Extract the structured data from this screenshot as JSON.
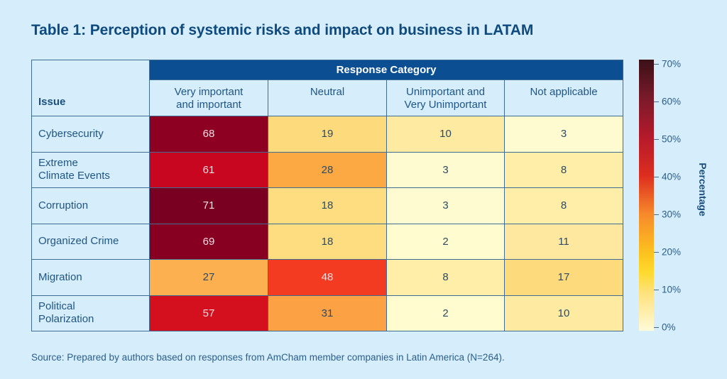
{
  "title": "Table 1: Perception of systemic risks and impact on business in LATAM",
  "source": "Source: Prepared by authors based on responses from AmCham member companies in Latin America (N=264).",
  "chart_data": {
    "type": "heatmap",
    "title": "Table 1: Perception of systemic risks and impact on business in LATAM",
    "row_header": "Issue",
    "column_group_header": "Response Category",
    "columns": [
      [
        "Very important",
        "and important"
      ],
      [
        "Neutral"
      ],
      [
        "Unimportant and",
        "Very Unimportant"
      ],
      [
        "Not applicable"
      ]
    ],
    "rows": [
      {
        "label": [
          "Cybersecurity"
        ],
        "values": [
          68,
          19,
          10,
          3
        ]
      },
      {
        "label": [
          "Extreme",
          "Climate Events"
        ],
        "values": [
          61,
          28,
          3,
          8
        ]
      },
      {
        "label": [
          "Corruption"
        ],
        "values": [
          71,
          18,
          3,
          8
        ]
      },
      {
        "label": [
          "Organized Crime"
        ],
        "values": [
          69,
          18,
          2,
          11
        ]
      },
      {
        "label": [
          "Migration"
        ],
        "values": [
          27,
          48,
          8,
          17
        ]
      },
      {
        "label": [
          "Political",
          "Polarization"
        ],
        "values": [
          57,
          31,
          2,
          10
        ]
      }
    ],
    "colorbar": {
      "title": "Percentage",
      "range": [
        0,
        70
      ],
      "ticks": [
        "0%",
        "10%",
        "20%",
        "30%",
        "40%",
        "50%",
        "60%",
        "70%"
      ],
      "tick_values": [
        0,
        10,
        20,
        30,
        40,
        50,
        60,
        70
      ],
      "colormap": [
        [
          0,
          "#fffbd9"
        ],
        [
          10,
          "#ffe17a"
        ],
        [
          15,
          "#ffda2e"
        ],
        [
          20,
          "#fcc21e"
        ],
        [
          30,
          "#f78a2b"
        ],
        [
          40,
          "#dd2e1f"
        ],
        [
          50,
          "#b51a2b"
        ],
        [
          60,
          "#7a1a2a"
        ],
        [
          70,
          "#3a1118"
        ]
      ]
    }
  },
  "cell_colors": [
    [
      "#8d0021",
      "#fddb7c",
      "#feeaa1",
      "#fffbd0"
    ],
    [
      "#c9061f",
      "#fca944",
      "#fffbd0",
      "#feeea8"
    ],
    [
      "#790020",
      "#fddd80",
      "#fffbd0",
      "#feeea8"
    ],
    [
      "#870021",
      "#fddd80",
      "#fffccf",
      "#fee8a0"
    ],
    [
      "#fdb04f",
      "#f33b22",
      "#feeea8",
      "#fdda7c"
    ],
    [
      "#d4101e",
      "#fca144",
      "#fffccf",
      "#feeaa1"
    ]
  ]
}
